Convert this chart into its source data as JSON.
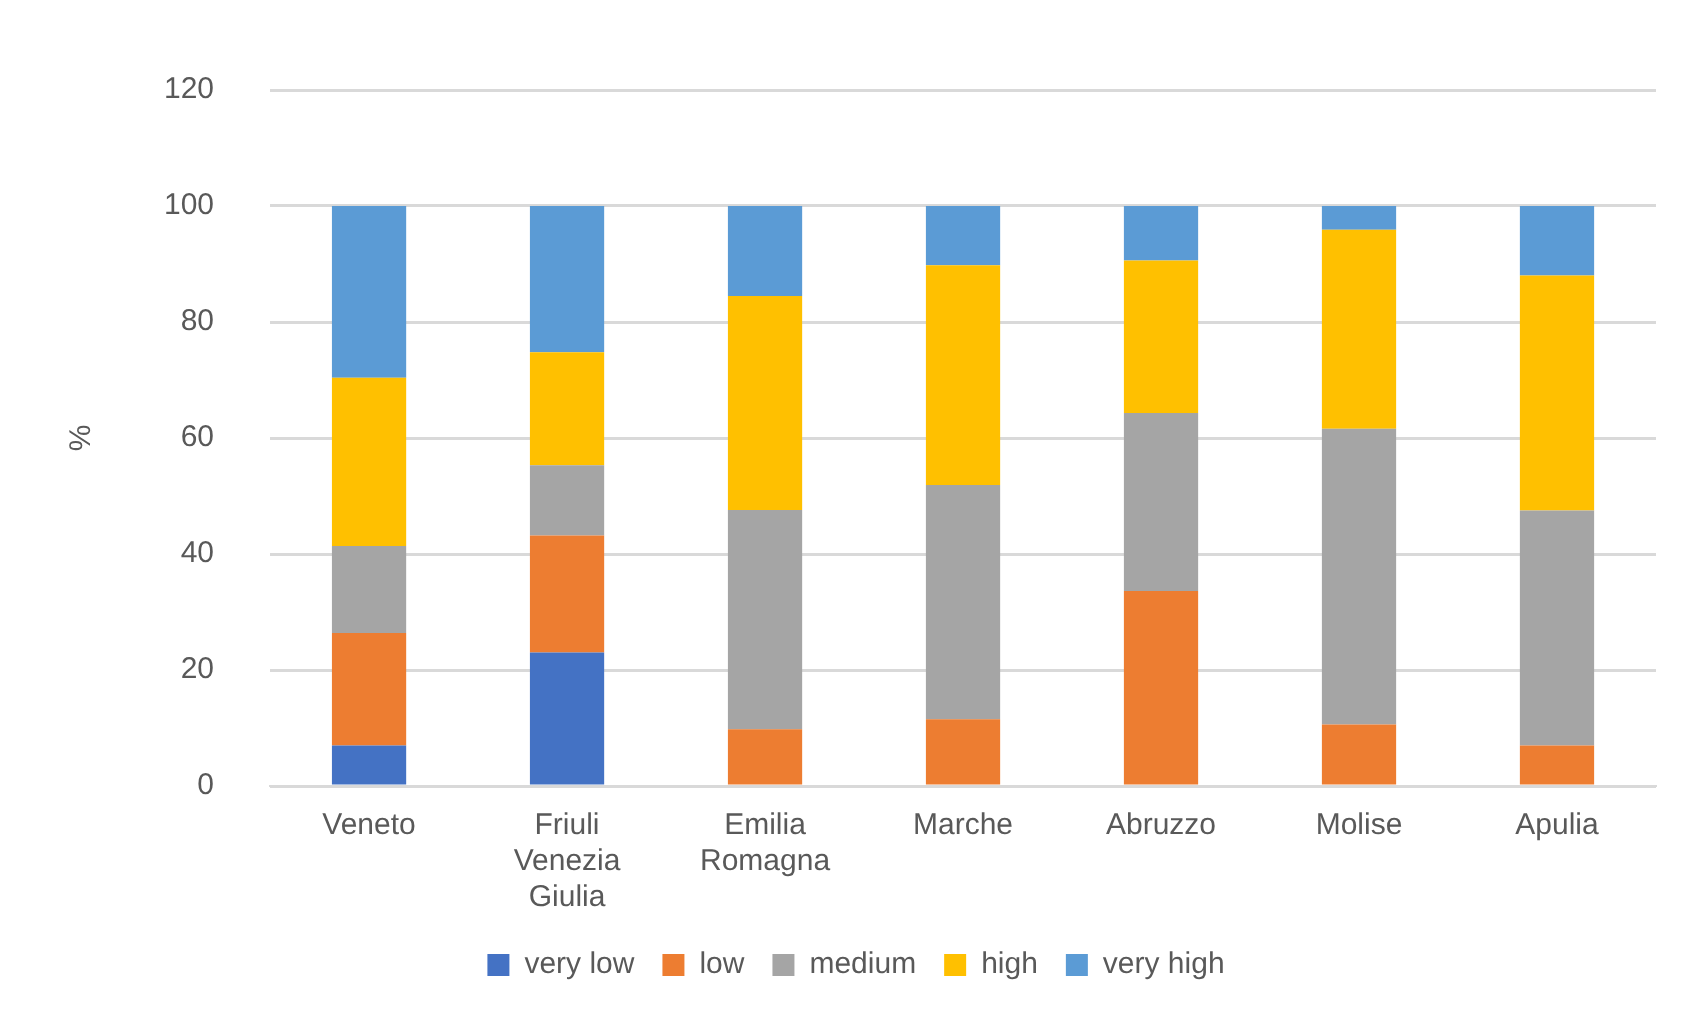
{
  "chart_data": {
    "type": "bar",
    "stacked": true,
    "ylabel": "%",
    "categories": [
      "Veneto",
      "Friuli Venezia Giulia",
      "Emilia Romagna",
      "Marche",
      "Abruzzo",
      "Molise",
      "Apulia"
    ],
    "series": [
      {
        "name": "very low",
        "color": "#4472c4",
        "values": [
          7,
          23,
          0,
          0,
          0,
          0,
          0
        ]
      },
      {
        "name": "low",
        "color": "#ed7d31",
        "values": [
          19.4,
          20.2,
          9.8,
          11.5,
          33.6,
          10.6,
          7
        ]
      },
      {
        "name": "medium",
        "color": "#a5a5a5",
        "values": [
          15,
          12.1,
          37.8,
          40.4,
          30.7,
          51,
          40.5
        ]
      },
      {
        "name": "high",
        "color": "#ffc000",
        "values": [
          29,
          19.5,
          36.9,
          37.9,
          26.3,
          34.3,
          40.5
        ]
      },
      {
        "name": "very high",
        "color": "#5b9bd5",
        "values": [
          29.6,
          25.2,
          15.5,
          10.2,
          9.4,
          4.1,
          12
        ]
      }
    ],
    "ylim": [
      0,
      120
    ],
    "yticks": [
      0,
      20,
      40,
      60,
      80,
      100,
      120
    ],
    "grid": "y",
    "legend": "bottom"
  }
}
